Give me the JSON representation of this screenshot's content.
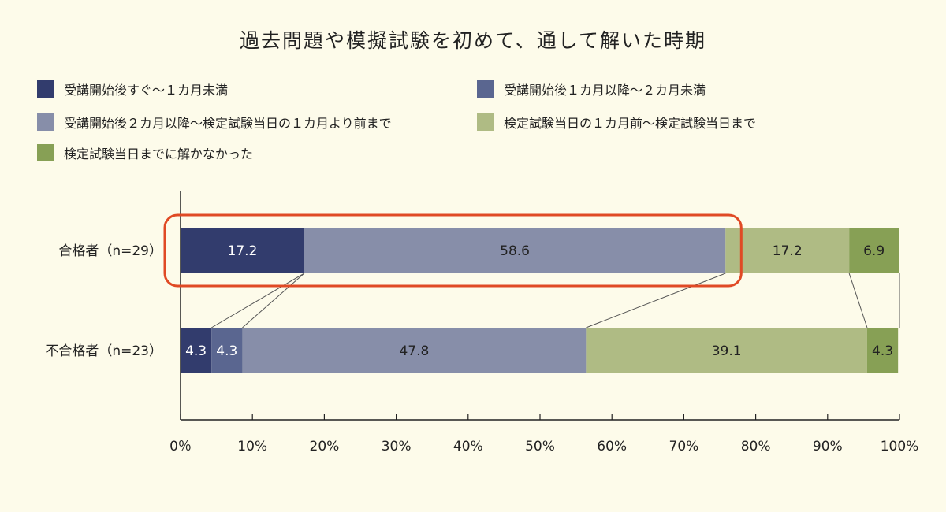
{
  "chart_data": {
    "type": "bar",
    "orientation": "horizontal",
    "stacked": true,
    "title": "過去問題や模擬試験を初めて、通して解いた時期",
    "categories": [
      "合格者（n=29）",
      "不合格者（n=23）"
    ],
    "series": [
      {
        "name": "受講開始後すぐ〜１カ月未満",
        "color": "#323c6d",
        "label_color": "#ffffff",
        "values": [
          17.2,
          4.3
        ]
      },
      {
        "name": "受講開始後１カ月以降〜２カ月未満",
        "color": "#5a6690",
        "label_color": "#ffffff",
        "values": [
          0,
          4.3
        ]
      },
      {
        "name": "受講開始後２カ月以降〜検定試験当日の１カ月より前まで",
        "color": "#878ea9",
        "label_color": "#222222",
        "values": [
          58.6,
          47.8
        ]
      },
      {
        "name": "検定試験当日の１カ月前〜検定試験当日まで",
        "color": "#afbb84",
        "label_color": "#222222",
        "values": [
          17.2,
          39.1
        ]
      },
      {
        "name": "検定試験当日までに解かなかった",
        "color": "#87a055",
        "label_color": "#222222",
        "values": [
          6.9,
          4.3
        ]
      }
    ],
    "xlim": [
      0,
      100
    ],
    "x_ticks": [
      "0％",
      "10%",
      "20%",
      "30%",
      "40%",
      "50%",
      "60%",
      "70%",
      "80%",
      "90%",
      "100%"
    ],
    "grid": false,
    "legend_position": "top",
    "highlight": {
      "category": "合格者（n=29）",
      "series_from": 0,
      "series_to": 2,
      "color": "#e04a25"
    },
    "connector_lines": true
  }
}
